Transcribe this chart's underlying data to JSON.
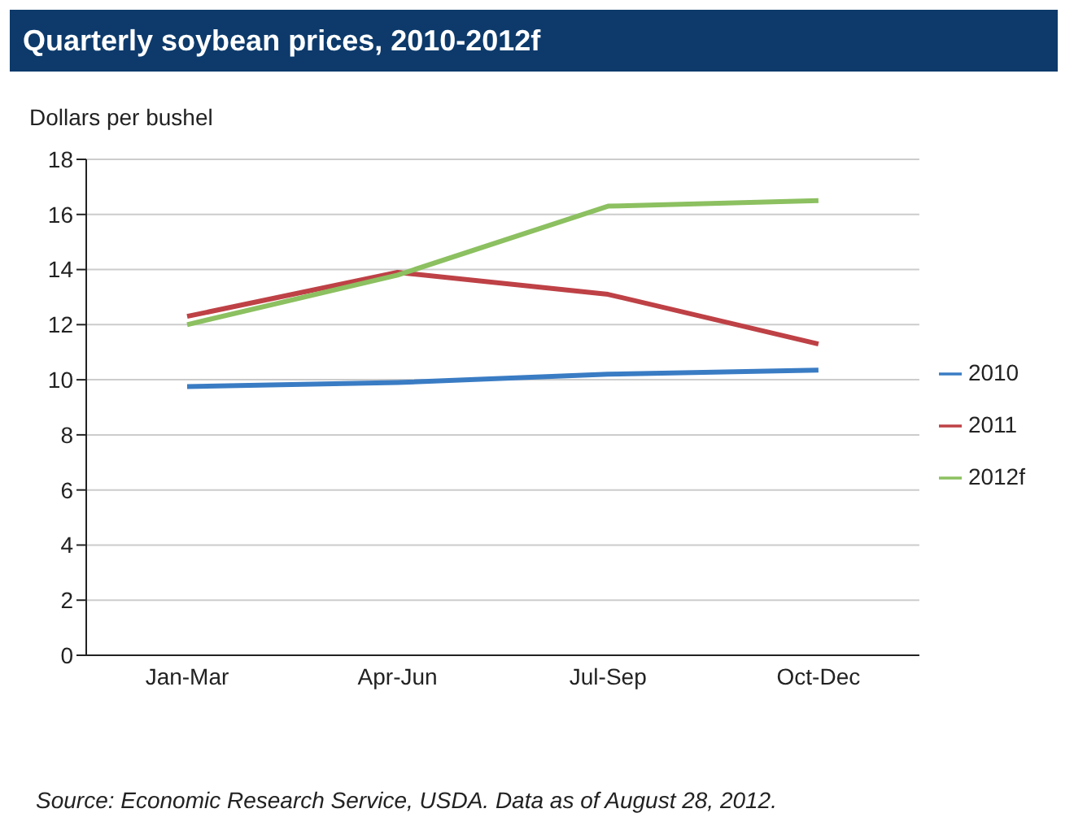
{
  "chart_data": {
    "type": "line",
    "title": "Quarterly soybean prices, 2010-2012f",
    "ylabel": "Dollars per bushel",
    "categories": [
      "Jan-Mar",
      "Apr-Jun",
      "Jul-Sep",
      "Oct-Dec"
    ],
    "series": [
      {
        "name": "2010",
        "color": "#3a7cc4",
        "values": [
          9.75,
          9.9,
          10.2,
          10.35
        ]
      },
      {
        "name": "2011",
        "color": "#be4146",
        "values": [
          12.3,
          13.9,
          13.1,
          11.3
        ]
      },
      {
        "name": "2012f",
        "color": "#8cc060",
        "values": [
          12.0,
          13.8,
          16.3,
          16.5
        ]
      }
    ],
    "ylim": [
      0,
      18
    ],
    "yticks": [
      0,
      2,
      4,
      6,
      8,
      10,
      12,
      14,
      16,
      18
    ],
    "grid": "y",
    "legend": "right",
    "marker": "none",
    "line_style": "solid",
    "annotations": [
      "Source: Economic Research Service, USDA. Data as of August 28, 2012."
    ]
  }
}
